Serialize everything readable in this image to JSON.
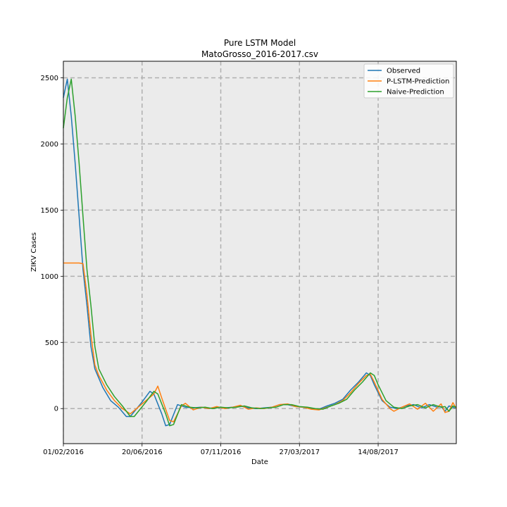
{
  "chart_data": {
    "type": "line",
    "title": "Pure LSTM Model",
    "subtitle": "MatoGrosso_2016-2017.csv",
    "xlabel": "Date",
    "ylabel": "ZIKV Cases",
    "xlim": [
      "2016-02-01",
      "2017-12-31"
    ],
    "ylim": [
      -265,
      2625
    ],
    "x_ticks": [
      {
        "date": "2016-02-01",
        "label": "01/02/2016"
      },
      {
        "date": "2016-06-20",
        "label": "20/06/2016"
      },
      {
        "date": "2016-11-07",
        "label": "07/11/2016"
      },
      {
        "date": "2017-03-27",
        "label": "27/03/2017"
      },
      {
        "date": "2017-08-14",
        "label": "14/08/2017"
      }
    ],
    "y_ticks": [
      0,
      500,
      1000,
      1500,
      2000,
      2500
    ],
    "grid": true,
    "legend_position": "top-right",
    "background_color": "#ebebeb",
    "series": [
      {
        "name": "Observed",
        "color": "#1f77b4",
        "points": [
          [
            "2016-02-01",
            2350
          ],
          [
            "2016-02-08",
            2490
          ],
          [
            "2016-02-15",
            2210
          ],
          [
            "2016-02-22",
            1850
          ],
          [
            "2016-02-29",
            1450
          ],
          [
            "2016-03-07",
            1050
          ],
          [
            "2016-03-14",
            780
          ],
          [
            "2016-03-21",
            470
          ],
          [
            "2016-03-28",
            300
          ],
          [
            "2016-04-11",
            160
          ],
          [
            "2016-04-25",
            60
          ],
          [
            "2016-05-09",
            10
          ],
          [
            "2016-05-23",
            -60
          ],
          [
            "2016-05-30",
            -60
          ],
          [
            "2016-06-20",
            50
          ],
          [
            "2016-07-04",
            130
          ],
          [
            "2016-07-11",
            110
          ],
          [
            "2016-07-25",
            -40
          ],
          [
            "2016-08-01",
            -130
          ],
          [
            "2016-08-08",
            -120
          ],
          [
            "2016-08-22",
            30
          ],
          [
            "2016-09-05",
            10
          ],
          [
            "2016-09-19",
            5
          ],
          [
            "2016-10-03",
            10
          ],
          [
            "2016-10-17",
            0
          ],
          [
            "2016-10-31",
            10
          ],
          [
            "2016-11-14",
            5
          ],
          [
            "2016-11-28",
            10
          ],
          [
            "2016-12-12",
            20
          ],
          [
            "2016-12-26",
            5
          ],
          [
            "2017-01-09",
            0
          ],
          [
            "2017-01-23",
            5
          ],
          [
            "2017-02-06",
            10
          ],
          [
            "2017-02-20",
            30
          ],
          [
            "2017-03-06",
            30
          ],
          [
            "2017-03-20",
            15
          ],
          [
            "2017-04-03",
            10
          ],
          [
            "2017-04-17",
            0
          ],
          [
            "2017-05-01",
            -5
          ],
          [
            "2017-05-15",
            20
          ],
          [
            "2017-05-29",
            40
          ],
          [
            "2017-06-12",
            70
          ],
          [
            "2017-06-26",
            140
          ],
          [
            "2017-07-10",
            200
          ],
          [
            "2017-07-24",
            270
          ],
          [
            "2017-07-31",
            250
          ],
          [
            "2017-08-07",
            180
          ],
          [
            "2017-08-21",
            60
          ],
          [
            "2017-09-04",
            10
          ],
          [
            "2017-09-18",
            0
          ],
          [
            "2017-10-02",
            20
          ],
          [
            "2017-10-16",
            30
          ],
          [
            "2017-10-30",
            5
          ],
          [
            "2017-11-13",
            30
          ],
          [
            "2017-11-27",
            10
          ],
          [
            "2017-12-04",
            15
          ],
          [
            "2017-12-11",
            -20
          ],
          [
            "2017-12-18",
            20
          ],
          [
            "2017-12-25",
            10
          ],
          [
            "2017-12-31",
            0
          ]
        ]
      },
      {
        "name": "P-LSTM-Prediction",
        "color": "#ff7f0e",
        "points": [
          [
            "2016-02-01",
            1100
          ],
          [
            "2016-02-08",
            1100
          ],
          [
            "2016-02-15",
            1100
          ],
          [
            "2016-02-22",
            1100
          ],
          [
            "2016-02-29",
            1100
          ],
          [
            "2016-03-07",
            1095
          ],
          [
            "2016-03-14",
            860
          ],
          [
            "2016-03-21",
            560
          ],
          [
            "2016-03-28",
            330
          ],
          [
            "2016-04-04",
            250
          ],
          [
            "2016-04-18",
            140
          ],
          [
            "2016-05-02",
            60
          ],
          [
            "2016-05-16",
            0
          ],
          [
            "2016-05-30",
            -40
          ],
          [
            "2016-06-13",
            10
          ],
          [
            "2016-06-27",
            60
          ],
          [
            "2016-07-11",
            110
          ],
          [
            "2016-07-18",
            170
          ],
          [
            "2016-07-25",
            80
          ],
          [
            "2016-08-08",
            -90
          ],
          [
            "2016-08-15",
            -100
          ],
          [
            "2016-08-29",
            20
          ],
          [
            "2016-09-05",
            40
          ],
          [
            "2016-09-19",
            -10
          ],
          [
            "2016-10-03",
            10
          ],
          [
            "2016-10-17",
            0
          ],
          [
            "2016-10-31",
            15
          ],
          [
            "2016-11-14",
            0
          ],
          [
            "2016-11-28",
            10
          ],
          [
            "2016-12-12",
            25
          ],
          [
            "2016-12-26",
            -5
          ],
          [
            "2017-01-09",
            5
          ],
          [
            "2017-01-23",
            0
          ],
          [
            "2017-02-06",
            10
          ],
          [
            "2017-02-20",
            30
          ],
          [
            "2017-03-06",
            35
          ],
          [
            "2017-03-20",
            15
          ],
          [
            "2017-04-03",
            10
          ],
          [
            "2017-04-17",
            -5
          ],
          [
            "2017-05-01",
            -10
          ],
          [
            "2017-05-15",
            10
          ],
          [
            "2017-05-29",
            30
          ],
          [
            "2017-06-12",
            60
          ],
          [
            "2017-06-26",
            120
          ],
          [
            "2017-07-10",
            190
          ],
          [
            "2017-07-24",
            250
          ],
          [
            "2017-07-31",
            260
          ],
          [
            "2017-08-07",
            200
          ],
          [
            "2017-08-21",
            70
          ],
          [
            "2017-09-04",
            0
          ],
          [
            "2017-09-11",
            -20
          ],
          [
            "2017-09-25",
            10
          ],
          [
            "2017-10-09",
            35
          ],
          [
            "2017-10-23",
            -5
          ],
          [
            "2017-11-06",
            40
          ],
          [
            "2017-11-20",
            -20
          ],
          [
            "2017-12-04",
            35
          ],
          [
            "2017-12-11",
            -30
          ],
          [
            "2017-12-18",
            -20
          ],
          [
            "2017-12-25",
            45
          ],
          [
            "2017-12-31",
            0
          ]
        ]
      },
      {
        "name": "Naive-Prediction",
        "color": "#2ca02c",
        "points": [
          [
            "2016-02-01",
            2120
          ],
          [
            "2016-02-08",
            2350
          ],
          [
            "2016-02-15",
            2490
          ],
          [
            "2016-02-22",
            2210
          ],
          [
            "2016-02-29",
            1850
          ],
          [
            "2016-03-07",
            1450
          ],
          [
            "2016-03-14",
            1050
          ],
          [
            "2016-03-21",
            780
          ],
          [
            "2016-03-28",
            470
          ],
          [
            "2016-04-04",
            300
          ],
          [
            "2016-04-18",
            180
          ],
          [
            "2016-05-02",
            90
          ],
          [
            "2016-05-16",
            20
          ],
          [
            "2016-05-30",
            -60
          ],
          [
            "2016-06-06",
            -60
          ],
          [
            "2016-06-27",
            50
          ],
          [
            "2016-07-11",
            130
          ],
          [
            "2016-07-18",
            110
          ],
          [
            "2016-08-01",
            -40
          ],
          [
            "2016-08-08",
            -130
          ],
          [
            "2016-08-15",
            -120
          ],
          [
            "2016-08-29",
            30
          ],
          [
            "2016-09-12",
            10
          ],
          [
            "2016-09-26",
            5
          ],
          [
            "2016-10-10",
            10
          ],
          [
            "2016-10-24",
            0
          ],
          [
            "2016-11-07",
            10
          ],
          [
            "2016-11-21",
            5
          ],
          [
            "2016-12-05",
            10
          ],
          [
            "2016-12-19",
            20
          ],
          [
            "2017-01-02",
            5
          ],
          [
            "2017-01-16",
            0
          ],
          [
            "2017-01-30",
            5
          ],
          [
            "2017-02-13",
            10
          ],
          [
            "2017-02-27",
            30
          ],
          [
            "2017-03-13",
            30
          ],
          [
            "2017-03-27",
            15
          ],
          [
            "2017-04-10",
            10
          ],
          [
            "2017-04-24",
            0
          ],
          [
            "2017-05-08",
            -5
          ],
          [
            "2017-05-22",
            20
          ],
          [
            "2017-06-05",
            40
          ],
          [
            "2017-06-19",
            70
          ],
          [
            "2017-07-03",
            140
          ],
          [
            "2017-07-17",
            200
          ],
          [
            "2017-07-31",
            270
          ],
          [
            "2017-08-07",
            250
          ],
          [
            "2017-08-14",
            180
          ],
          [
            "2017-08-28",
            60
          ],
          [
            "2017-09-11",
            10
          ],
          [
            "2017-09-25",
            0
          ],
          [
            "2017-10-09",
            20
          ],
          [
            "2017-10-23",
            30
          ],
          [
            "2017-11-06",
            5
          ],
          [
            "2017-11-20",
            30
          ],
          [
            "2017-12-04",
            10
          ],
          [
            "2017-12-11",
            15
          ],
          [
            "2017-12-18",
            -20
          ],
          [
            "2017-12-25",
            20
          ],
          [
            "2017-12-31",
            10
          ]
        ]
      }
    ]
  }
}
